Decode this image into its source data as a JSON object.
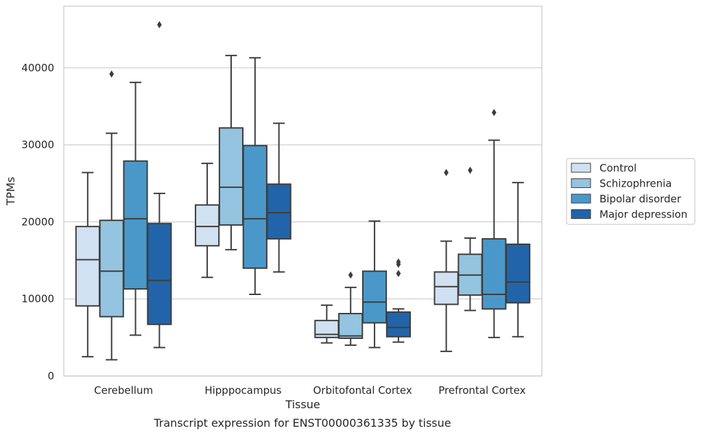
{
  "chart_data": {
    "type": "box",
    "title": "",
    "caption": "Transcript expression for ENST00000361335 by tissue",
    "xlabel": "Tissue",
    "ylabel": "TPMs",
    "ylim": [
      0,
      48000
    ],
    "yticks": [
      0,
      10000,
      20000,
      30000,
      40000
    ],
    "grid": true,
    "legend_position": "right",
    "categories": [
      "Cerebellum",
      "Hipppocampus",
      "Orbitofontal Cortex",
      "Prefrontal Cortex"
    ],
    "series": [
      {
        "name": "Control",
        "color": "#d0e1f2",
        "boxes": [
          {
            "whisker_low": 2500,
            "q1": 9100,
            "median": 15100,
            "q3": 19400,
            "whisker_high": 26400,
            "outliers": []
          },
          {
            "whisker_low": 12800,
            "q1": 16900,
            "median": 19400,
            "q3": 22200,
            "whisker_high": 27600,
            "outliers": []
          },
          {
            "whisker_low": 4300,
            "q1": 5000,
            "median": 5400,
            "q3": 7200,
            "whisker_high": 9200,
            "outliers": []
          },
          {
            "whisker_low": 3200,
            "q1": 9300,
            "median": 11600,
            "q3": 13500,
            "whisker_high": 17500,
            "outliers": [
              26400
            ]
          }
        ]
      },
      {
        "name": "Schizophrenia",
        "color": "#94c4df",
        "boxes": [
          {
            "whisker_low": 2100,
            "q1": 7700,
            "median": 13600,
            "q3": 20200,
            "whisker_high": 31500,
            "outliers": [
              39200
            ]
          },
          {
            "whisker_low": 16400,
            "q1": 19600,
            "median": 24500,
            "q3": 32200,
            "whisker_high": 41600,
            "outliers": []
          },
          {
            "whisker_low": 4000,
            "q1": 4900,
            "median": 5200,
            "q3": 8100,
            "whisker_high": 11500,
            "outliers": [
              13100
            ]
          },
          {
            "whisker_low": 8500,
            "q1": 10500,
            "median": 13100,
            "q3": 15800,
            "whisker_high": 17900,
            "outliers": [
              26700
            ]
          }
        ]
      },
      {
        "name": "Bipolar disorder",
        "color": "#4a98c9",
        "boxes": [
          {
            "whisker_low": 5300,
            "q1": 11300,
            "median": 20400,
            "q3": 27900,
            "whisker_high": 38100,
            "outliers": []
          },
          {
            "whisker_low": 10600,
            "q1": 14000,
            "median": 20400,
            "q3": 29900,
            "whisker_high": 41300,
            "outliers": []
          },
          {
            "whisker_low": 3700,
            "q1": 6900,
            "median": 9600,
            "q3": 13600,
            "whisker_high": 20100,
            "outliers": []
          },
          {
            "whisker_low": 5000,
            "q1": 8700,
            "median": 10600,
            "q3": 17800,
            "whisker_high": 30600,
            "outliers": [
              34200
            ]
          }
        ]
      },
      {
        "name": "Major depression",
        "color": "#2264a9",
        "boxes": [
          {
            "whisker_low": 3700,
            "q1": 6700,
            "median": 12400,
            "q3": 19800,
            "whisker_high": 23700,
            "outliers": [
              45600
            ]
          },
          {
            "whisker_low": 13500,
            "q1": 17800,
            "median": 21200,
            "q3": 24900,
            "whisker_high": 32800,
            "outliers": []
          },
          {
            "whisker_low": 4400,
            "q1": 5100,
            "median": 6300,
            "q3": 8300,
            "whisker_high": 8700,
            "outliers": [
              13300,
              14500,
              14800
            ]
          },
          {
            "whisker_low": 5100,
            "q1": 9500,
            "median": 12200,
            "q3": 17100,
            "whisker_high": 25100,
            "outliers": []
          }
        ]
      }
    ]
  }
}
